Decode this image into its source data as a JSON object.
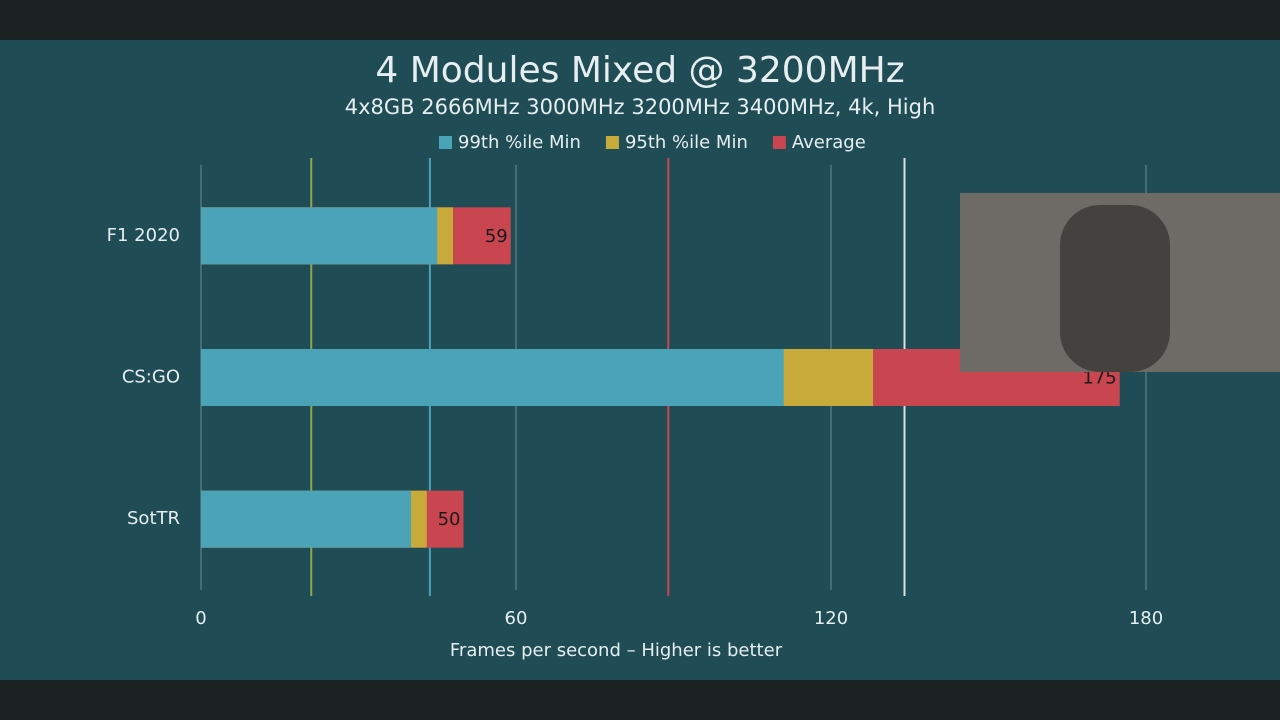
{
  "chart_data": {
    "type": "bar",
    "orientation": "horizontal",
    "overlap": true,
    "title": "4 Modules Mixed @ 3200MHz",
    "subtitle": "4x8GB 2666MHz 3000MHz 3200MHz 3400MHz, 4k, High",
    "x_label": "Frames per second – Higher is better",
    "categories": [
      "F1 2020",
      "CS:GO",
      "SotTR"
    ],
    "series": [
      {
        "name": "99th %ile Min",
        "color": "#4ba3b8",
        "values": [
          45,
          111,
          40
        ]
      },
      {
        "name": "95th %ile Min",
        "color": "#c7aa3a",
        "values": [
          48,
          128,
          43
        ]
      },
      {
        "name": "Average",
        "color": "#c9454f",
        "values": [
          59,
          175,
          50
        ]
      }
    ],
    "data_labels_series": 2,
    "reference_lines": [
      {
        "color": "#8aa850",
        "value": 21
      },
      {
        "color": "#4ba3b8",
        "value": 43.6
      },
      {
        "color": "#c9454f",
        "value": 89
      },
      {
        "color": "#d8e2e4",
        "value": 134
      }
    ],
    "xlim": [
      0,
      200
    ],
    "xticks": [
      0,
      60,
      120,
      180
    ],
    "grid": true,
    "legend": "top"
  }
}
